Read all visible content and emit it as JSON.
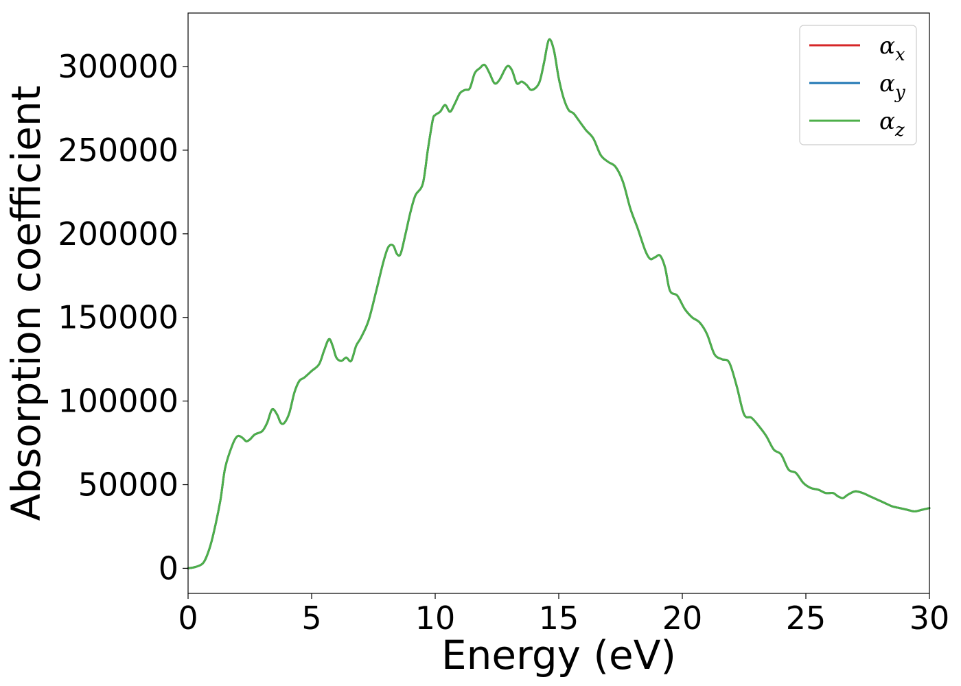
{
  "chart_data": {
    "type": "line",
    "xlabel": "Energy (eV)",
    "ylabel": "Absorption coefficient",
    "xlim": [
      0,
      30
    ],
    "ylim": [
      -15000,
      332000
    ],
    "xticks": [
      0,
      5,
      10,
      15,
      20,
      25,
      30
    ],
    "xtick_labels": [
      "0",
      "5",
      "10",
      "15",
      "20",
      "25",
      "30"
    ],
    "yticks": [
      0,
      50000,
      100000,
      150000,
      200000,
      250000,
      300000
    ],
    "ytick_labels": [
      "0",
      "50000",
      "100000",
      "150000",
      "200000",
      "250000",
      "300000"
    ],
    "grid": false,
    "legend_position": "upper-right",
    "x": [
      0,
      0.3,
      0.6,
      0.8,
      1.0,
      1.3,
      1.5,
      1.8,
      2.0,
      2.2,
      2.35,
      2.5,
      2.7,
      3.0,
      3.2,
      3.4,
      3.6,
      3.75,
      3.9,
      4.1,
      4.3,
      4.5,
      4.7,
      5.0,
      5.3,
      5.5,
      5.7,
      5.85,
      6.0,
      6.2,
      6.4,
      6.6,
      6.8,
      7.0,
      7.3,
      7.6,
      7.9,
      8.1,
      8.3,
      8.45,
      8.6,
      8.8,
      9.0,
      9.2,
      9.5,
      9.7,
      9.9,
      10.0,
      10.2,
      10.4,
      10.6,
      10.8,
      11.0,
      11.2,
      11.4,
      11.6,
      11.8,
      12.0,
      12.2,
      12.4,
      12.6,
      12.9,
      13.1,
      13.3,
      13.5,
      13.7,
      13.9,
      14.2,
      14.4,
      14.6,
      14.8,
      15.0,
      15.2,
      15.4,
      15.6,
      15.8,
      16.1,
      16.4,
      16.7,
      17.0,
      17.3,
      17.6,
      17.9,
      18.2,
      18.5,
      18.7,
      18.9,
      19.1,
      19.3,
      19.5,
      19.8,
      20.1,
      20.4,
      20.7,
      21.0,
      21.3,
      21.6,
      21.9,
      22.2,
      22.5,
      22.8,
      23.1,
      23.4,
      23.7,
      24.0,
      24.3,
      24.6,
      24.9,
      25.2,
      25.5,
      25.8,
      26.1,
      26.3,
      26.5,
      26.7,
      27.0,
      27.3,
      27.6,
      27.9,
      28.2,
      28.5,
      28.8,
      29.1,
      29.4,
      29.7,
      30.0
    ],
    "series": [
      {
        "name": "α_x",
        "color": "#d62728",
        "values": [
          0,
          800,
          3000,
          9000,
          19000,
          40000,
          60000,
          74000,
          79000,
          78000,
          76000,
          77000,
          80000,
          82000,
          87000,
          95000,
          92000,
          87000,
          87000,
          93000,
          105000,
          112000,
          114000,
          118000,
          122000,
          130000,
          137000,
          133000,
          126000,
          124000,
          126000,
          124000,
          133000,
          138000,
          148000,
          165000,
          183000,
          192000,
          193000,
          188000,
          188000,
          200000,
          213000,
          223000,
          230000,
          250000,
          268000,
          271000,
          273000,
          277000,
          273000,
          278000,
          284000,
          286000,
          287000,
          296000,
          299000,
          301000,
          296000,
          290000,
          292000,
          300000,
          298000,
          290000,
          291000,
          289000,
          286000,
          290000,
          302000,
          316000,
          310000,
          293000,
          281000,
          274000,
          272000,
          268000,
          262000,
          257000,
          247000,
          243000,
          240000,
          231000,
          215000,
          203000,
          190000,
          185000,
          186000,
          187000,
          180000,
          166000,
          163000,
          155000,
          150000,
          147000,
          140000,
          128000,
          125000,
          123000,
          109000,
          92000,
          90000,
          85000,
          79000,
          71000,
          68000,
          59000,
          57000,
          51000,
          48000,
          47000,
          45000,
          45000,
          43000,
          42000,
          44000,
          46000,
          45000,
          43000,
          41000,
          39000,
          37000,
          36000,
          35000,
          34000,
          35000,
          36000
        ]
      },
      {
        "name": "α_y",
        "color": "#1f77b4",
        "values": [
          0,
          800,
          3000,
          9000,
          19000,
          40000,
          60000,
          74000,
          79000,
          78000,
          76000,
          77000,
          80000,
          82000,
          87000,
          95000,
          92000,
          87000,
          87000,
          93000,
          105000,
          112000,
          114000,
          118000,
          122000,
          130000,
          137000,
          133000,
          126000,
          124000,
          126000,
          124000,
          133000,
          138000,
          148000,
          165000,
          183000,
          192000,
          193000,
          188000,
          188000,
          200000,
          213000,
          223000,
          230000,
          250000,
          268000,
          271000,
          273000,
          277000,
          273000,
          278000,
          284000,
          286000,
          287000,
          296000,
          299000,
          301000,
          296000,
          290000,
          292000,
          300000,
          298000,
          290000,
          291000,
          289000,
          286000,
          290000,
          302000,
          316000,
          310000,
          293000,
          281000,
          274000,
          272000,
          268000,
          262000,
          257000,
          247000,
          243000,
          240000,
          231000,
          215000,
          203000,
          190000,
          185000,
          186000,
          187000,
          180000,
          166000,
          163000,
          155000,
          150000,
          147000,
          140000,
          128000,
          125000,
          123000,
          109000,
          92000,
          90000,
          85000,
          79000,
          71000,
          68000,
          59000,
          57000,
          51000,
          48000,
          47000,
          45000,
          45000,
          43000,
          42000,
          44000,
          46000,
          45000,
          43000,
          41000,
          39000,
          37000,
          36000,
          35000,
          34000,
          35000,
          36000
        ]
      },
      {
        "name": "α_z",
        "color": "#4daf4a",
        "values": [
          0,
          800,
          3000,
          9000,
          19000,
          40000,
          60000,
          74000,
          79000,
          78000,
          76000,
          77000,
          80000,
          82000,
          87000,
          95000,
          92000,
          87000,
          87000,
          93000,
          105000,
          112000,
          114000,
          118000,
          122000,
          130000,
          137000,
          133000,
          126000,
          124000,
          126000,
          124000,
          133000,
          138000,
          148000,
          165000,
          183000,
          192000,
          193000,
          188000,
          188000,
          200000,
          213000,
          223000,
          230000,
          250000,
          268000,
          271000,
          273000,
          277000,
          273000,
          278000,
          284000,
          286000,
          287000,
          296000,
          299000,
          301000,
          296000,
          290000,
          292000,
          300000,
          298000,
          290000,
          291000,
          289000,
          286000,
          290000,
          302000,
          316000,
          310000,
          293000,
          281000,
          274000,
          272000,
          268000,
          262000,
          257000,
          247000,
          243000,
          240000,
          231000,
          215000,
          203000,
          190000,
          185000,
          186000,
          187000,
          180000,
          166000,
          163000,
          155000,
          150000,
          147000,
          140000,
          128000,
          125000,
          123000,
          109000,
          92000,
          90000,
          85000,
          79000,
          71000,
          68000,
          59000,
          57000,
          51000,
          48000,
          47000,
          45000,
          45000,
          43000,
          42000,
          44000,
          46000,
          45000,
          43000,
          41000,
          39000,
          37000,
          36000,
          35000,
          34000,
          35000,
          36000
        ]
      }
    ],
    "legend": [
      {
        "symbol": "α",
        "subscript": "x",
        "color": "#d62728"
      },
      {
        "symbol": "α",
        "subscript": "y",
        "color": "#1f77b4"
      },
      {
        "symbol": "α",
        "subscript": "z",
        "color": "#4daf4a"
      }
    ]
  }
}
